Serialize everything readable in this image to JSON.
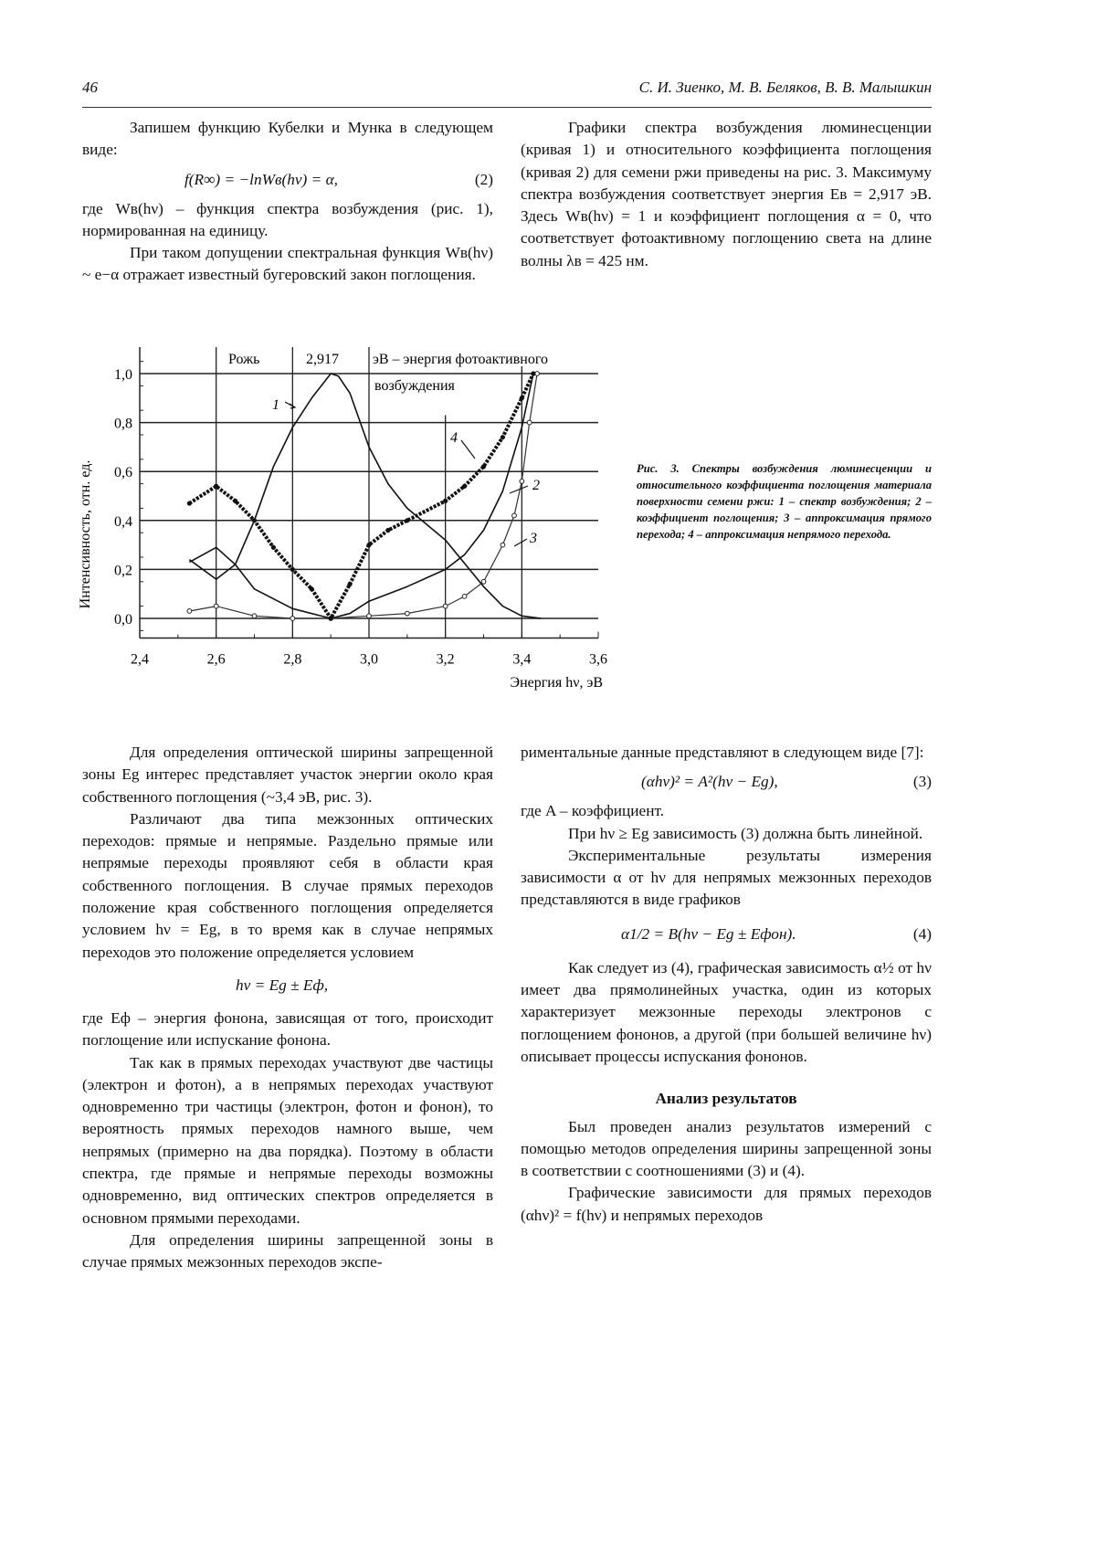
{
  "header": {
    "page_number": "46",
    "authors": "С. И. Зиенко, М. В. Беляков, В. В. Малышкин"
  },
  "left_top": {
    "p1": "Запишем функцию Кубелки и Мунка в следующем виде:",
    "formula2": "f(R∞) = −lnWв(hν) = α,",
    "formula2_num": "(2)",
    "p2": "где Wв(hν) – функция спектра возбуждения (рис. 1), нормированная на единицу.",
    "p3": "При таком допущении спектральная функция Wв(hν) ~ e−α отражает известный бугеровский закон поглощения."
  },
  "right_top": {
    "p1": "Графики спектра возбуждения люминесценции (кривая 1) и относительного коэффициента поглощения (кривая 2) для семени ржи приведены на рис. 3. Максимуму спектра возбуждения соответствует энергия Eв = 2,917 эВ. Здесь Wв(hν) = 1 и коэффициент поглощения α = 0, что соответствует фотоактивному поглощению света на длине волны λв = 425 нм."
  },
  "chart_data": {
    "type": "line",
    "xlabel": "Энергия hν, эВ",
    "ylabel": "Интенсивность, отн. ед.",
    "xlim": [
      2.4,
      3.6
    ],
    "ylim": [
      0.0,
      1.0
    ],
    "xticks": [
      "2,4",
      "2,6",
      "2,8",
      "3,0",
      "3,2",
      "3,4",
      "3,6"
    ],
    "yticks": [
      "0,0",
      "0,2",
      "0,4",
      "0,6",
      "0,8",
      "1,0"
    ],
    "grid": true,
    "annotations": {
      "sample": "Рожь",
      "peak_energy": "2,917",
      "energy_note_1": "эВ – энергия фотоактивного",
      "energy_note_2": "возбуждения"
    },
    "series": [
      {
        "name": "1",
        "style": "thin-line",
        "x": [
          2.53,
          2.6,
          2.65,
          2.7,
          2.75,
          2.8,
          2.85,
          2.9,
          2.92,
          2.95,
          3.0,
          3.05,
          3.1,
          3.2,
          3.3,
          3.35,
          3.4,
          3.45
        ],
        "y": [
          0.24,
          0.16,
          0.22,
          0.4,
          0.62,
          0.78,
          0.9,
          1.0,
          0.99,
          0.92,
          0.7,
          0.55,
          0.45,
          0.32,
          0.13,
          0.05,
          0.01,
          0.0
        ]
      },
      {
        "name": "2",
        "style": "thin-line",
        "x": [
          2.53,
          2.6,
          2.65,
          2.7,
          2.8,
          2.9,
          2.95,
          3.0,
          3.1,
          3.2,
          3.25,
          3.3,
          3.35,
          3.4,
          3.43
        ],
        "y": [
          0.23,
          0.29,
          0.22,
          0.12,
          0.04,
          0.0,
          0.02,
          0.07,
          0.13,
          0.2,
          0.26,
          0.36,
          0.52,
          0.78,
          1.0
        ]
      },
      {
        "name": "3",
        "style": "open-circles",
        "x": [
          2.53,
          2.6,
          2.7,
          2.8,
          2.9,
          3.0,
          3.1,
          3.2,
          3.25,
          3.3,
          3.35,
          3.38,
          3.4,
          3.42,
          3.44
        ],
        "y": [
          0.03,
          0.05,
          0.01,
          0.0,
          0.0,
          0.01,
          0.02,
          0.05,
          0.09,
          0.15,
          0.3,
          0.42,
          0.56,
          0.8,
          1.0
        ]
      },
      {
        "name": "4",
        "style": "filled-dots",
        "x": [
          2.53,
          2.6,
          2.65,
          2.7,
          2.75,
          2.8,
          2.85,
          2.9,
          2.95,
          3.0,
          3.05,
          3.1,
          3.2,
          3.25,
          3.3,
          3.35,
          3.4,
          3.43
        ],
        "y": [
          0.47,
          0.54,
          0.48,
          0.4,
          0.29,
          0.2,
          0.12,
          0.0,
          0.14,
          0.3,
          0.36,
          0.4,
          0.48,
          0.54,
          0.62,
          0.74,
          0.9,
          1.0
        ]
      }
    ]
  },
  "caption": "Рис. 3. Спектры возбуждения люминесценции и относительного коэффициента поглощения материала поверхности семени ржи: 1 – спектр возбуждения; 2 – коэффициент поглощения; 3 – аппроксимация прямого перехода; 4 – аппроксимация непрямого перехода.",
  "left_bottom": {
    "p1": "Для определения оптической ширины запрещенной зоны Eg интерес представляет участок энергии около края собственного поглощения (~3,4 эВ, рис. 3).",
    "p2": "Различают два типа межзонных оптических переходов: прямые и непрямые. Раздельно прямые или непрямые переходы проявляют себя в области края собственного поглощения. В случае прямых переходов положение края собственного поглощения определяется условием hν = Eg, в то время как в случае непрямых переходов это положение определяется условием",
    "formula": "hν = Eg ± Eф,",
    "p3": "где Eф – энергия фонона, зависящая от того, происходит поглощение или испускание фонона.",
    "p4": "Так как в прямых переходах участвуют две частицы (электрон и фотон), а в непрямых переходах участвуют одновременно три частицы (электрон, фотон и фонон), то вероятность прямых переходов намного выше, чем непрямых (примерно на два порядка). Поэтому в области спектра, где прямые и непрямые переходы возможны одновременно, вид оптических спектров определяется в основном прямыми переходами.",
    "p5": "Для определения ширины запрещенной зоны в случае прямых межзонных переходов экспе-"
  },
  "right_bottom": {
    "p1": "риментальные данные представляют в следующем виде [7]:",
    "formula3": "(αhν)² = A²(hν − Eg),",
    "formula3_num": "(3)",
    "p2": "где A – коэффициент.",
    "p3": "При hν ≥ Eg зависимость (3) должна быть линейной.",
    "p4": "Экспериментальные результаты измерения зависимости α от hν для непрямых межзонных переходов представляются в виде графиков",
    "formula4": "α1/2 = B(hν − Eg ± Eфон).",
    "formula4_num": "(4)",
    "p5": "Как следует из (4), графическая зависимость α½ от hν имеет два прямолинейных участка, один из которых характеризует межзонные переходы электронов с поглощением фононов, а другой (при большей величине hν) описывает процессы испускания фононов.",
    "heading": "Анализ результатов",
    "p6": "Был проведен анализ результатов измерений с помощью методов определения ширины запрещенной зоны в соответствии с соотношениями (3) и (4).",
    "p7": "Графические зависимости для прямых переходов (αhν)² = f(hν) и непрямых переходов"
  }
}
